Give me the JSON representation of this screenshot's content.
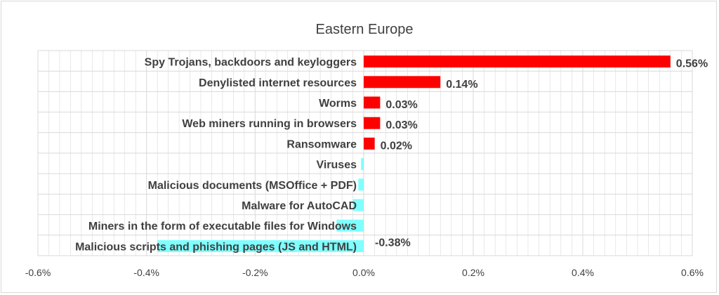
{
  "chart_data": {
    "type": "bar",
    "orientation": "horizontal",
    "title": "Eastern Europe",
    "categories": [
      "Spy Trojans, backdoors and keyloggers",
      "Denylisted internet resources",
      "Worms",
      "Web miners running in browsers",
      "Ransomware",
      "Viruses",
      "Malicious documents (MSOffice + PDF)",
      "Malware for AutoCAD",
      "Miners in the form of executable files for Windows",
      "Malicious scripts and phishing pages (JS and HTML)"
    ],
    "values": [
      0.56,
      0.14,
      0.03,
      0.03,
      0.02,
      -0.005,
      -0.01,
      -0.02,
      -0.05,
      -0.38
    ],
    "data_labels": [
      "0.56%",
      "0.14%",
      "0.03%",
      "0.03%",
      "0.02%",
      "",
      "",
      "",
      "",
      "-0.38%"
    ],
    "xlim": [
      -0.6,
      0.6
    ],
    "xticks": [
      -0.6,
      -0.4,
      -0.2,
      0.0,
      0.2,
      0.4,
      0.6
    ],
    "xtick_labels": [
      "-0.6%",
      "-0.4%",
      "-0.2%",
      "0.0%",
      "0.2%",
      "0.4%",
      "0.6%"
    ],
    "grid": true,
    "colors": {
      "positive": "#ff0000",
      "negative": "#7fffff",
      "grid": "#d9d9d9",
      "text": "#404040"
    }
  }
}
